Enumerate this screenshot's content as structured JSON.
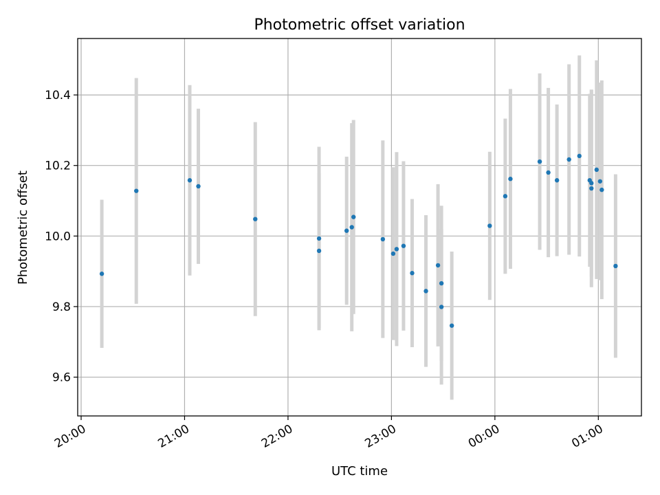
{
  "chart_data": {
    "type": "scatter",
    "title": "Photometric offset variation",
    "xlabel": "UTC time",
    "ylabel": "Photometric offset",
    "x_format": "time HH:MM (UTC), ticks hourly; labels rotated 30 degrees",
    "x_ticks": [
      "20:00",
      "21:00",
      "22:00",
      "23:00",
      "00:00",
      "01:00"
    ],
    "y_ticks": [
      9.6,
      9.8,
      10.0,
      10.2,
      10.4
    ],
    "xlim": [
      "19:58",
      "01:25"
    ],
    "ylim": [
      9.49,
      10.56
    ],
    "grid": true,
    "colors": {
      "point": "#1f77b4",
      "error_bar": "#d3d3d3",
      "grid": "#b0b0b0"
    },
    "series": [
      {
        "points": [
          {
            "x": "20:12",
            "y": 9.893,
            "err": 0.21
          },
          {
            "x": "20:32",
            "y": 10.128,
            "err": 0.32
          },
          {
            "x": "21:03",
            "y": 10.158,
            "err": 0.27
          },
          {
            "x": "21:08",
            "y": 10.141,
            "err": 0.22
          },
          {
            "x": "21:41",
            "y": 10.048,
            "err": 0.275
          },
          {
            "x": "22:18",
            "y": 9.993,
            "err": 0.26
          },
          {
            "x": "22:18",
            "y": 9.958,
            "err": 0.22
          },
          {
            "x": "22:34",
            "y": 10.015,
            "err": 0.21
          },
          {
            "x": "22:37",
            "y": 10.025,
            "err": 0.295
          },
          {
            "x": "22:38",
            "y": 10.054,
            "err": 0.275
          },
          {
            "x": "22:55",
            "y": 9.991,
            "err": 0.28
          },
          {
            "x": "23:01",
            "y": 9.95,
            "err": 0.245
          },
          {
            "x": "23:03",
            "y": 9.963,
            "err": 0.275
          },
          {
            "x": "23:07",
            "y": 9.972,
            "err": 0.24
          },
          {
            "x": "23:12",
            "y": 9.895,
            "err": 0.21
          },
          {
            "x": "23:20",
            "y": 9.844,
            "err": 0.215
          },
          {
            "x": "23:27",
            "y": 9.917,
            "err": 0.23
          },
          {
            "x": "23:29",
            "y": 9.866,
            "err": 0.22
          },
          {
            "x": "23:29",
            "y": 9.799,
            "err": 0.22
          },
          {
            "x": "23:35",
            "y": 9.746,
            "err": 0.21
          },
          {
            "x": "23:57",
            "y": 10.029,
            "err": 0.21
          },
          {
            "x": "00:06",
            "y": 10.113,
            "err": 0.22
          },
          {
            "x": "00:09",
            "y": 10.162,
            "err": 0.255
          },
          {
            "x": "00:26",
            "y": 10.211,
            "err": 0.25
          },
          {
            "x": "00:31",
            "y": 10.18,
            "err": 0.24
          },
          {
            "x": "00:36",
            "y": 10.158,
            "err": 0.215
          },
          {
            "x": "00:43",
            "y": 10.217,
            "err": 0.27
          },
          {
            "x": "00:49",
            "y": 10.227,
            "err": 0.285
          },
          {
            "x": "00:55",
            "y": 10.158,
            "err": 0.245
          },
          {
            "x": "00:56",
            "y": 10.15,
            "err": 0.265
          },
          {
            "x": "00:56",
            "y": 10.135,
            "err": 0.28
          },
          {
            "x": "00:59",
            "y": 10.188,
            "err": 0.31
          },
          {
            "x": "01:01",
            "y": 10.155,
            "err": 0.28
          },
          {
            "x": "01:02",
            "y": 10.131,
            "err": 0.31
          },
          {
            "x": "01:10",
            "y": 9.915,
            "err": 0.26
          }
        ]
      }
    ]
  }
}
